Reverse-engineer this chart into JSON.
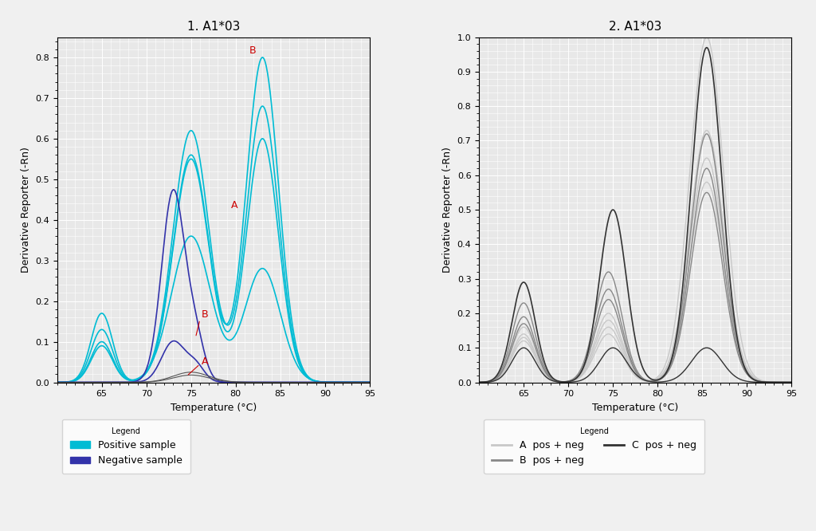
{
  "title1": "1. A1*03",
  "title2": "2. A1*03",
  "xlabel": "Temperature (°C)",
  "ylabel": "Derivative Reporter (-Rn)",
  "xlim": [
    60,
    95
  ],
  "xticks": [
    65.0,
    70.0,
    75.0,
    80.0,
    85.0,
    90.0,
    95.0
  ],
  "ylim1": [
    0,
    0.85
  ],
  "yticks1": [
    0.0,
    0.1,
    0.2,
    0.3,
    0.4,
    0.5,
    0.6,
    0.7,
    0.8
  ],
  "ylim2": [
    0,
    1.0
  ],
  "yticks2": [
    0.0,
    0.1,
    0.2,
    0.3,
    0.4,
    0.5,
    0.6,
    0.7,
    0.8,
    0.9,
    1.0
  ],
  "bg_color": "#e8e8e8",
  "grid_color": "#ffffff",
  "cyan_color": "#00bcd4",
  "blue_color": "#3333aa",
  "annotation_color": "#cc0000",
  "light_gray": "#c8c8c8",
  "mid_gray": "#888888",
  "dark_gray": "#333333"
}
